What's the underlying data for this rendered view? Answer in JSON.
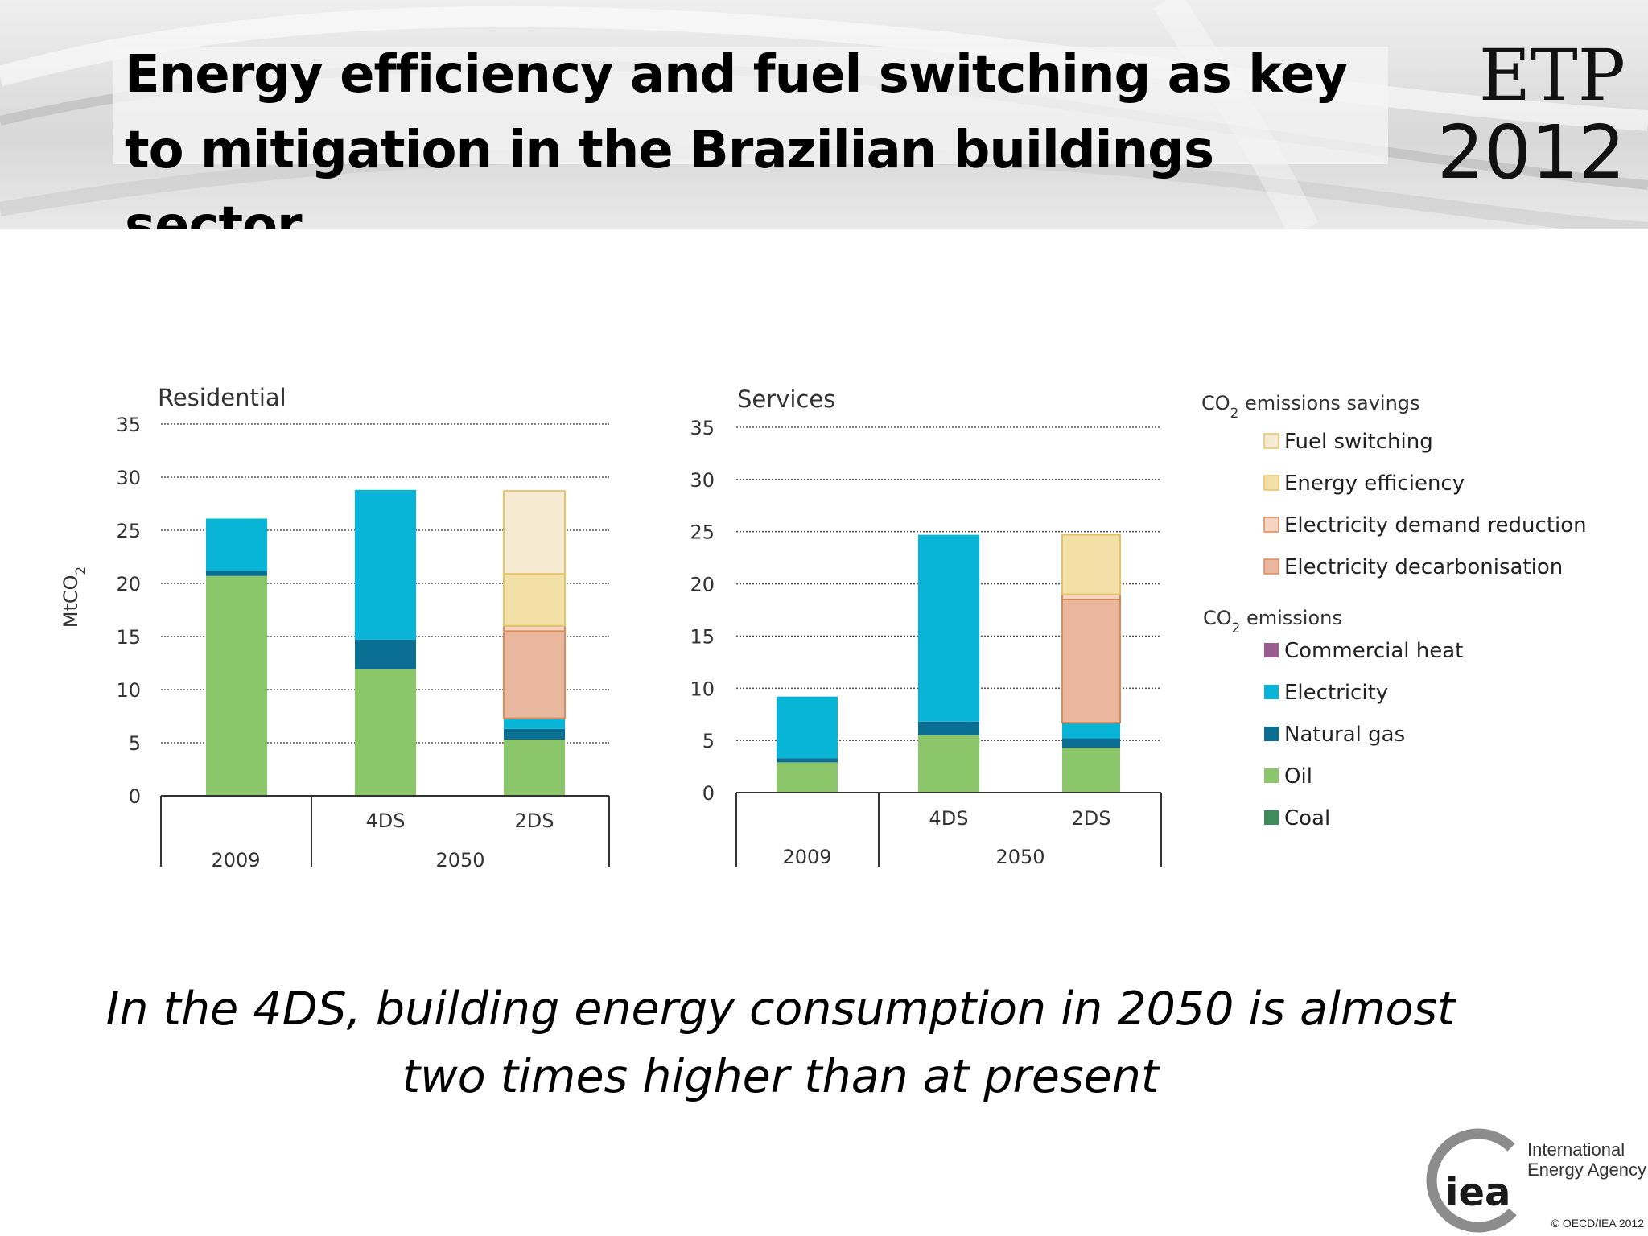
{
  "slide": {
    "title": "Energy efficiency and fuel switching as key to mitigation in the Brazilian buildings sector",
    "badge_top": "ETP",
    "badge_bottom": "2012",
    "caption_line1": "In the 4DS, building energy consumption in 2050 is almost",
    "caption_line2": "two times higher than at present",
    "logo_text": "iea",
    "agency_name": "International Energy Agency",
    "copyright": "© OECD/IEA 2012"
  },
  "colors": {
    "Coal": "#3e8c5b",
    "Oil": "#8cc66b",
    "Natural gas": "#0b6e93",
    "Electricity": "#09b5d6",
    "Commercial heat": "#9b5b8f",
    "Electricity decarbonisation": "#e9b79e",
    "Electricity demand reduction": "#f4d5c4",
    "Energy efficiency": "#f3e0a6",
    "Fuel switching": "#f6ead3",
    "savings_border_orange": "#e08a5a",
    "savings_border_yellow": "#e6c36a"
  },
  "chart_data": [
    {
      "type": "bar",
      "stacked": true,
      "title": "Residential",
      "ylabel": "MtCO2",
      "ylim": [
        0,
        35
      ],
      "yticks": [
        0,
        5,
        10,
        15,
        20,
        25,
        30,
        35
      ],
      "grid": true,
      "categories": [
        {
          "label": "",
          "group": "2009"
        },
        {
          "label": "4DS",
          "group": "2050"
        },
        {
          "label": "2DS",
          "group": "2050"
        }
      ],
      "groups": [
        "2009",
        "2050"
      ],
      "series": [
        {
          "name": "Oil",
          "values": [
            20.7,
            11.9,
            5.3
          ]
        },
        {
          "name": "Natural gas",
          "values": [
            0.5,
            2.8,
            1.0
          ]
        },
        {
          "name": "Electricity",
          "values": [
            4.9,
            14.1,
            1.0
          ]
        },
        {
          "name": "Electricity decarbonisation",
          "values": [
            0,
            0,
            8.2
          ]
        },
        {
          "name": "Electricity demand reduction",
          "values": [
            0,
            0,
            0.5
          ]
        },
        {
          "name": "Energy efficiency",
          "values": [
            0,
            0,
            4.9
          ]
        },
        {
          "name": "Fuel switching",
          "values": [
            0,
            0,
            7.8
          ]
        }
      ]
    },
    {
      "type": "bar",
      "stacked": true,
      "title": "Services",
      "ylabel": "",
      "ylim": [
        0,
        35
      ],
      "yticks": [
        0,
        5,
        10,
        15,
        20,
        25,
        30,
        35
      ],
      "grid": true,
      "categories": [
        {
          "label": "",
          "group": "2009"
        },
        {
          "label": "4DS",
          "group": "2050"
        },
        {
          "label": "2DS",
          "group": "2050"
        }
      ],
      "groups": [
        "2009",
        "2050"
      ],
      "series": [
        {
          "name": "Oil",
          "values": [
            2.9,
            5.5,
            4.3
          ]
        },
        {
          "name": "Natural gas",
          "values": [
            0.4,
            1.3,
            0.9
          ]
        },
        {
          "name": "Electricity",
          "values": [
            5.9,
            17.9,
            1.5
          ]
        },
        {
          "name": "Electricity decarbonisation",
          "values": [
            0,
            0,
            11.8
          ]
        },
        {
          "name": "Electricity demand reduction",
          "values": [
            0,
            0,
            0.5
          ]
        },
        {
          "name": "Energy efficiency",
          "values": [
            0,
            0,
            5.7
          ]
        },
        {
          "name": "Fuel switching",
          "values": [
            0,
            0,
            0
          ]
        }
      ]
    }
  ],
  "legend": {
    "savings_title": "CO2 emissions savings",
    "savings_items": [
      "Fuel switching",
      "Energy efficiency",
      "Electricity demand reduction",
      "Electricity decarbonisation"
    ],
    "emissions_title": "CO2 emissions",
    "emissions_items": [
      "Commercial heat",
      "Electricity",
      "Natural gas",
      "Oil",
      "Coal"
    ]
  }
}
